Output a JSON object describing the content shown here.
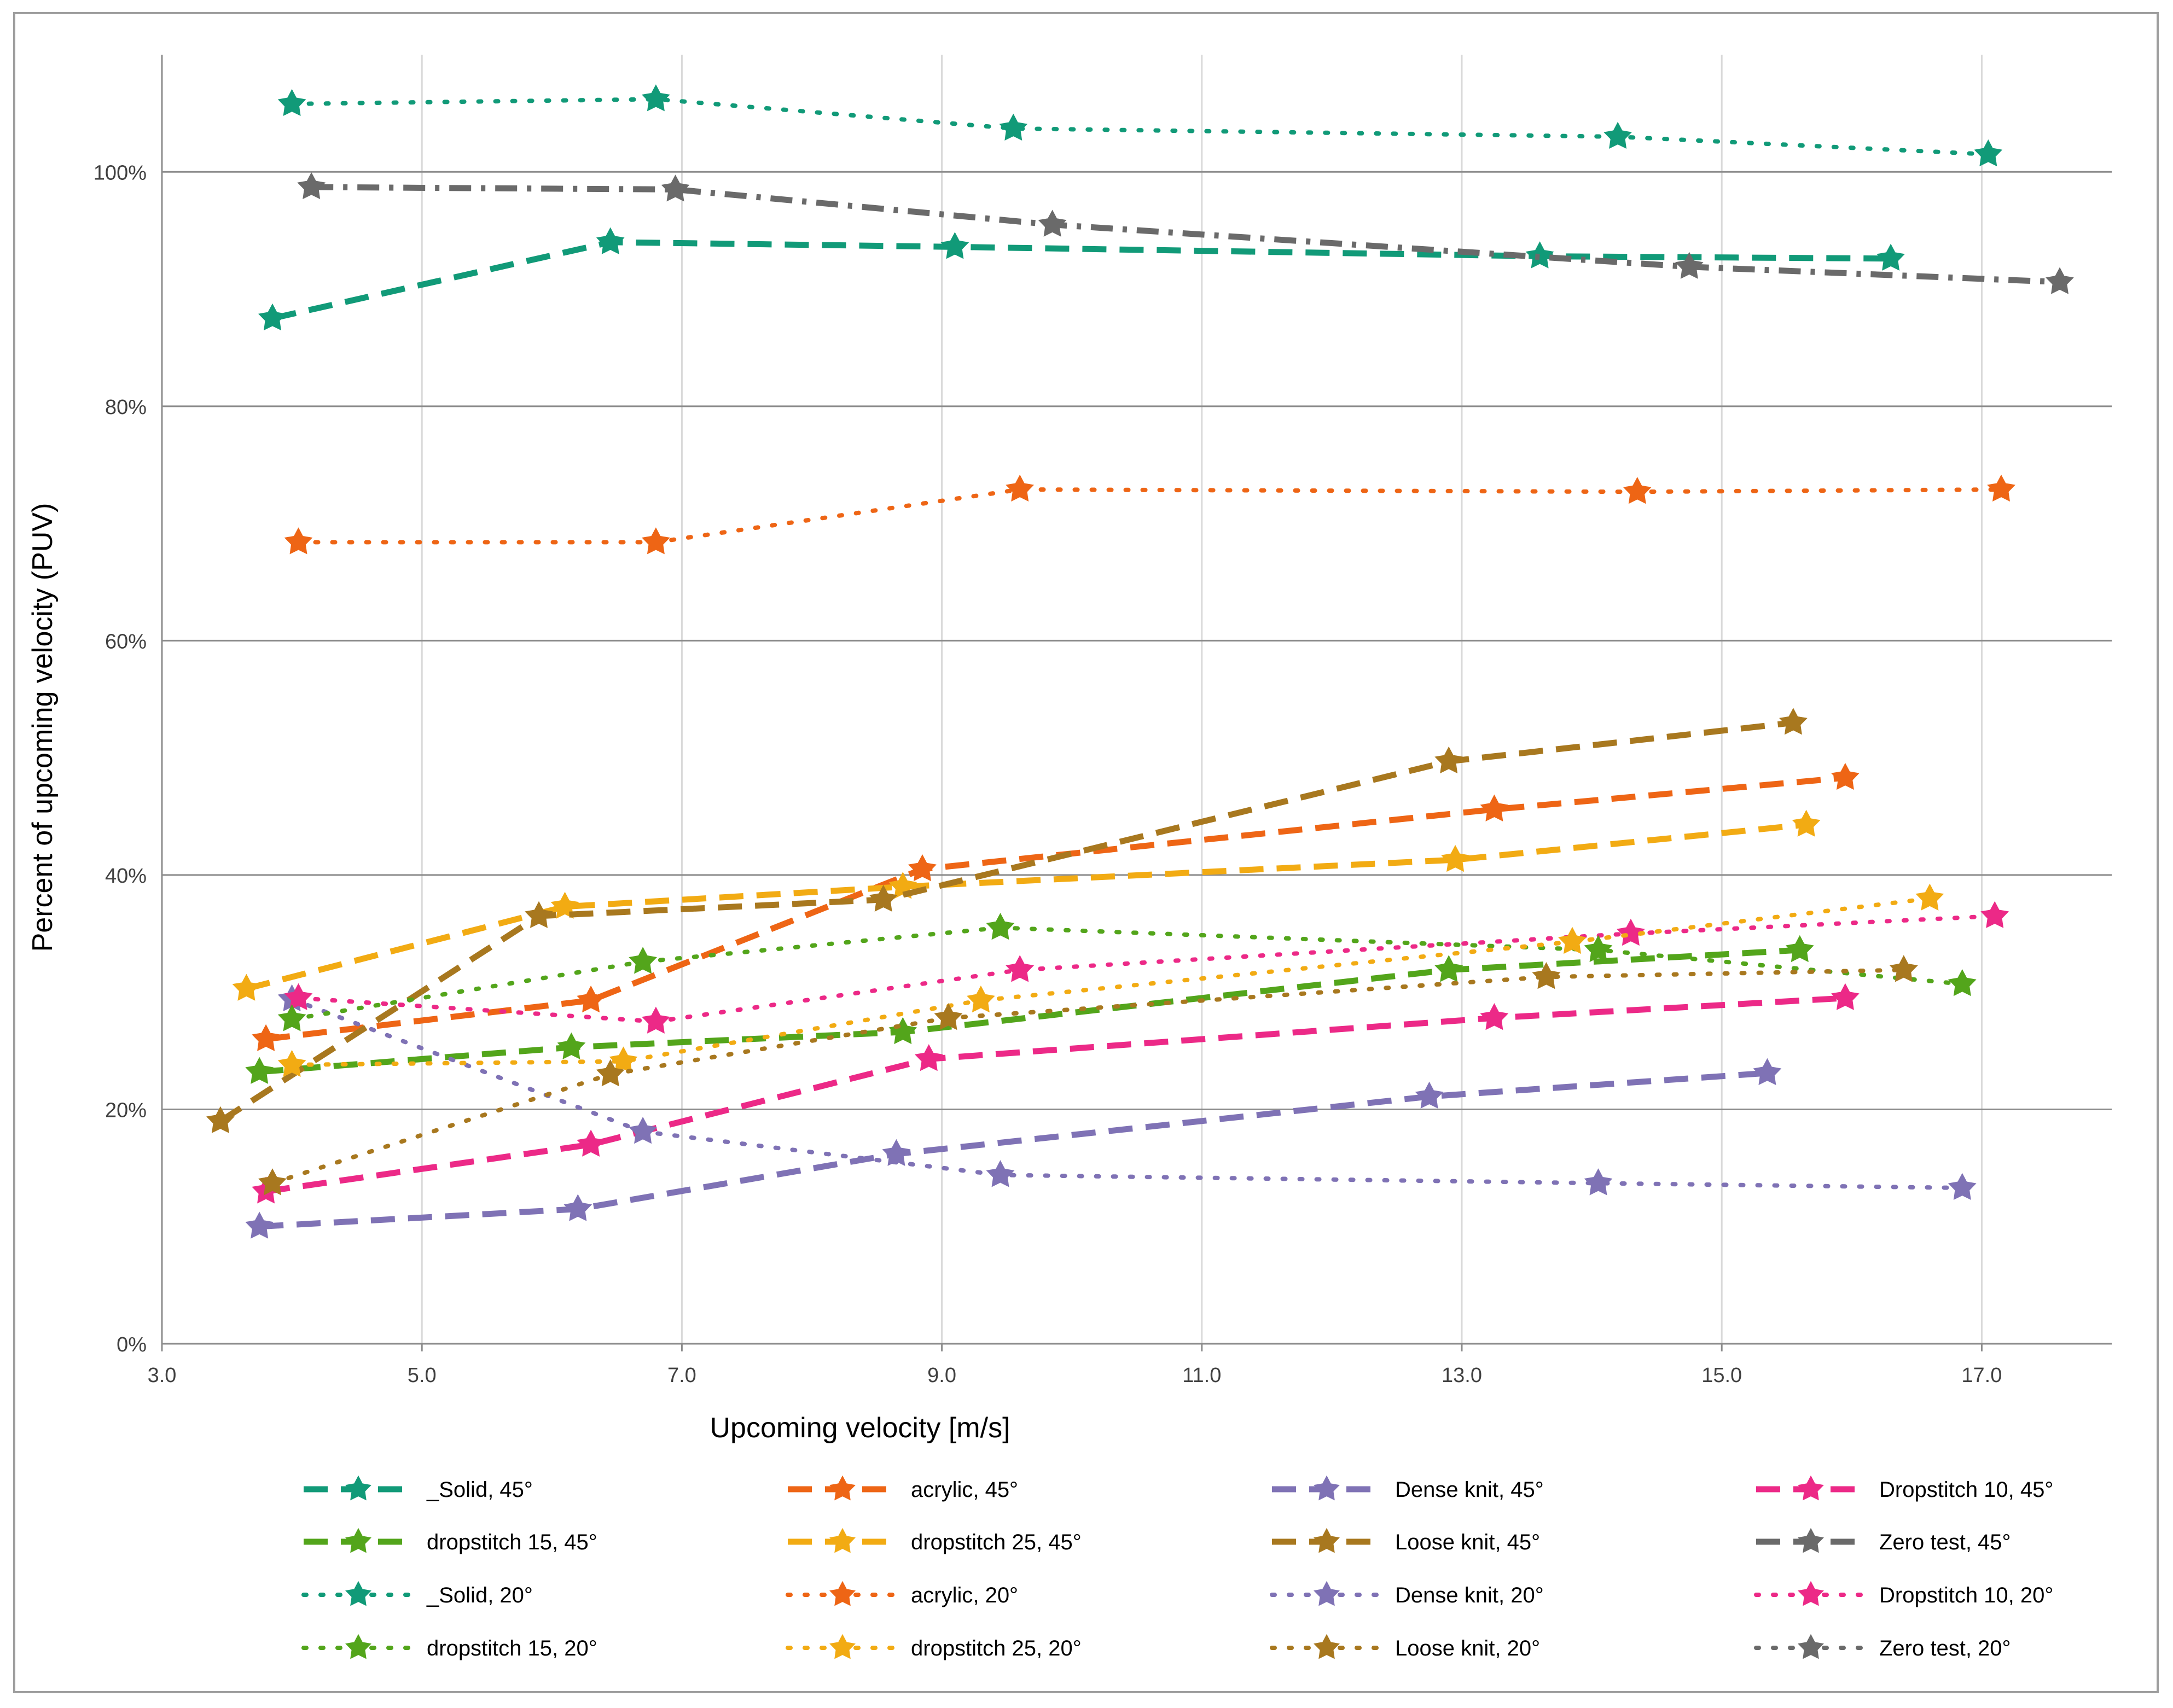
{
  "chart_data": {
    "type": "line",
    "title": "",
    "xlabel": "Upcoming velocity [m/s]",
    "ylabel": "Percent of upcoming velocity  (PUV)",
    "xlim": [
      3.0,
      18.0
    ],
    "ylim": [
      0,
      1.1
    ],
    "x_ticks": [
      3.0,
      5.0,
      7.0,
      9.0,
      11.0,
      13.0,
      15.0,
      17.0
    ],
    "x_tick_labels": [
      "3.0",
      "5.0",
      "7.0",
      "9.0",
      "11.0",
      "13.0",
      "15.0",
      "17.0"
    ],
    "y_ticks": [
      0,
      0.2,
      0.4,
      0.6,
      0.8,
      1.0
    ],
    "y_tick_labels": [
      "0%",
      "20%",
      "40%",
      "60%",
      "80%",
      "100%"
    ],
    "grid": "horizontal and vertical gridlines",
    "legend_position": "bottom, 4 columns",
    "series": [
      {
        "name": "_Solid, 45°",
        "color": "#119a78",
        "style": "dashed",
        "x": [
          3.85,
          6.45,
          9.1,
          13.6,
          16.3
        ],
        "y": [
          0.875,
          0.94,
          0.936,
          0.928,
          0.926
        ]
      },
      {
        "name": "acrylic, 45°",
        "color": "#ee6515",
        "style": "dashed",
        "x": [
          3.8,
          6.3,
          8.85,
          13.25,
          15.95
        ],
        "y": [
          0.26,
          0.293,
          0.405,
          0.456,
          0.483
        ]
      },
      {
        "name": "Dense knit, 45°",
        "color": "#7f72b5",
        "style": "dashed",
        "x": [
          3.75,
          6.2,
          8.65,
          12.75,
          15.35
        ],
        "y": [
          0.1,
          0.115,
          0.162,
          0.211,
          0.231
        ]
      },
      {
        "name": "Dropstitch 10, 45°",
        "color": "#ec2987",
        "style": "dashed",
        "x": [
          3.8,
          6.3,
          8.9,
          13.25,
          15.95
        ],
        "y": [
          0.13,
          0.17,
          0.243,
          0.278,
          0.295
        ]
      },
      {
        "name": "dropstitch 15, 45°",
        "color": "#53a51b",
        "style": "dashed",
        "x": [
          3.75,
          6.15,
          8.7,
          12.9,
          15.6
        ],
        "y": [
          0.232,
          0.253,
          0.266,
          0.319,
          0.336
        ]
      },
      {
        "name": "dropstitch 25, 45°",
        "color": "#f2ab13",
        "style": "dashed",
        "x": [
          3.65,
          6.1,
          8.7,
          12.95,
          15.65
        ],
        "y": [
          0.303,
          0.373,
          0.39,
          0.413,
          0.443
        ]
      },
      {
        "name": "Loose knit, 45°",
        "color": "#a8781f",
        "style": "dashed",
        "x": [
          3.45,
          5.9,
          8.55,
          12.9,
          15.55
        ],
        "y": [
          0.19,
          0.365,
          0.379,
          0.497,
          0.53
        ]
      },
      {
        "name": "Zero test, 45°",
        "color": "#6a6a6a",
        "style": "dashdot",
        "x": [
          4.15,
          6.95,
          9.85,
          14.75,
          17.6
        ],
        "y": [
          0.987,
          0.985,
          0.955,
          0.919,
          0.906
        ]
      },
      {
        "name": "_Solid, 20°",
        "color": "#119a78",
        "style": "dotted",
        "x": [
          4.0,
          6.8,
          9.55,
          14.2,
          17.05
        ],
        "y": [
          1.058,
          1.062,
          1.037,
          1.03,
          1.015
        ]
      },
      {
        "name": "acrylic, 20°",
        "color": "#ee6515",
        "style": "dotted",
        "x": [
          4.05,
          6.8,
          9.6,
          14.35,
          17.15
        ],
        "y": [
          0.684,
          0.684,
          0.729,
          0.727,
          0.729
        ]
      },
      {
        "name": "Dense knit, 20°",
        "color": "#7f72b5",
        "style": "dotted",
        "x": [
          4.0,
          6.7,
          9.45,
          14.05,
          16.85
        ],
        "y": [
          0.294,
          0.181,
          0.144,
          0.137,
          0.133
        ]
      },
      {
        "name": "Dropstitch 10, 20°",
        "color": "#ec2987",
        "style": "dotted",
        "x": [
          4.05,
          6.8,
          9.6,
          14.3,
          17.1
        ],
        "y": [
          0.295,
          0.275,
          0.319,
          0.35,
          0.365
        ]
      },
      {
        "name": "dropstitch 15, 20°",
        "color": "#53a51b",
        "style": "dotted",
        "x": [
          4.0,
          6.7,
          9.45,
          14.05,
          16.85
        ],
        "y": [
          0.277,
          0.326,
          0.355,
          0.336,
          0.307
        ]
      },
      {
        "name": "dropstitch 25, 20°",
        "color": "#f2ab13",
        "style": "dotted",
        "x": [
          4.0,
          6.55,
          9.3,
          13.85,
          16.6
        ],
        "y": [
          0.238,
          0.241,
          0.293,
          0.343,
          0.38
        ]
      },
      {
        "name": "Loose knit, 20°",
        "color": "#a8781f",
        "style": "dotted",
        "x": [
          3.85,
          6.45,
          9.05,
          13.65,
          16.4
        ],
        "y": [
          0.137,
          0.23,
          0.278,
          0.313,
          0.319
        ]
      },
      {
        "name": "Zero test, 20°",
        "color": "#6a6a6a",
        "style": "dotted",
        "x": [],
        "y": []
      }
    ]
  }
}
